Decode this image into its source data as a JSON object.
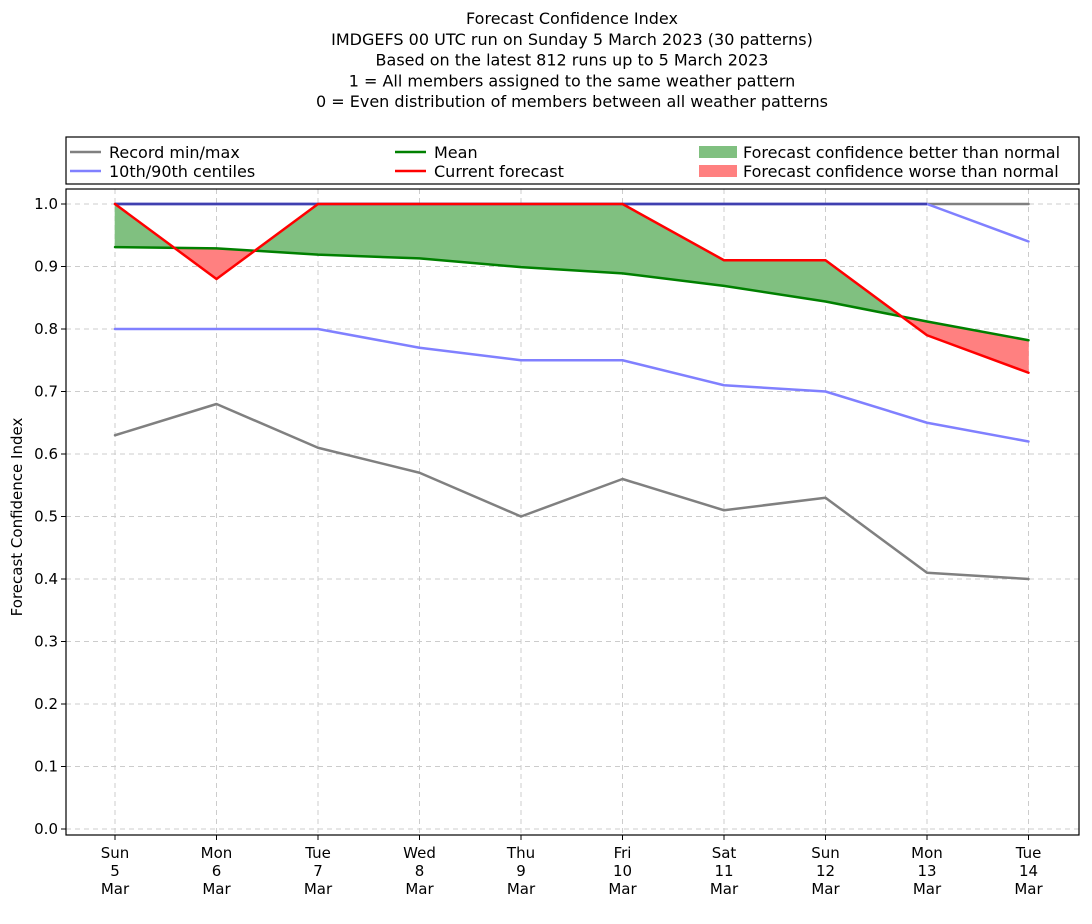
{
  "chart_data": {
    "type": "line",
    "title_lines": [
      "Forecast Confidence Index",
      "IMDGEFS 00 UTC run on Sunday 5 March 2023 (30 patterns)",
      "Based on the latest 812 runs up to 5 March 2023",
      "1 = All members assigned to the same weather pattern",
      "0 = Even distribution of members between all weather patterns"
    ],
    "ylabel": "Forecast Confidence Index",
    "xlabel": "",
    "ylim": [
      0.0,
      1.0
    ],
    "yticks": [
      "0.0",
      "0.1",
      "0.2",
      "0.3",
      "0.4",
      "0.5",
      "0.6",
      "0.7",
      "0.8",
      "0.9",
      "1.0"
    ],
    "grid": true,
    "legend_placement": "top, above plot",
    "categories": [
      [
        "Sun",
        "5",
        "Mar"
      ],
      [
        "Mon",
        "6",
        "Mar"
      ],
      [
        "Tue",
        "7",
        "Mar"
      ],
      [
        "Wed",
        "8",
        "Mar"
      ],
      [
        "Thu",
        "9",
        "Mar"
      ],
      [
        "Fri",
        "10",
        "Mar"
      ],
      [
        "Sat",
        "11",
        "Mar"
      ],
      [
        "Sun",
        "12",
        "Mar"
      ],
      [
        "Mon",
        "13",
        "Mar"
      ],
      [
        "Tue",
        "14",
        "Mar"
      ]
    ],
    "series": {
      "record_min": [
        0.63,
        0.68,
        0.61,
        0.57,
        0.5,
        0.56,
        0.51,
        0.53,
        0.41,
        0.4
      ],
      "record_max": [
        1.0,
        1.0,
        1.0,
        1.0,
        1.0,
        1.0,
        1.0,
        1.0,
        1.0,
        1.0
      ],
      "p10": [
        0.8,
        0.8,
        0.8,
        0.77,
        0.75,
        0.75,
        0.71,
        0.7,
        0.65,
        0.62
      ],
      "p90": [
        1.0,
        1.0,
        1.0,
        1.0,
        1.0,
        1.0,
        1.0,
        1.0,
        1.0,
        0.94
      ],
      "mean": [
        0.931,
        0.929,
        0.919,
        0.913,
        0.899,
        0.889,
        0.869,
        0.844,
        0.812,
        0.782
      ],
      "current": [
        1.0,
        0.88,
        1.0,
        1.0,
        1.0,
        1.0,
        0.91,
        0.91,
        0.79,
        0.73
      ]
    },
    "legend": [
      {
        "label": "Record min/max",
        "kind": "line",
        "color": "#808080"
      },
      {
        "label": "10th/90th centiles",
        "kind": "line",
        "color": "#8080ff"
      },
      {
        "label": "Mean",
        "kind": "line",
        "color": "#008000"
      },
      {
        "label": "Current forecast",
        "kind": "line",
        "color": "#ff0000"
      },
      {
        "label": "Forecast confidence better than normal",
        "kind": "patch",
        "color": "#80c080"
      },
      {
        "label": "Forecast confidence worse than normal",
        "kind": "patch",
        "color": "#ff8080"
      }
    ],
    "colors": {
      "record": "#808080",
      "centile": "#8080ff",
      "mean": "#008000",
      "current": "#ff0000",
      "better_fill": "#80c080",
      "worse_fill": "#ff8080",
      "overlap": "#4040b0"
    }
  }
}
